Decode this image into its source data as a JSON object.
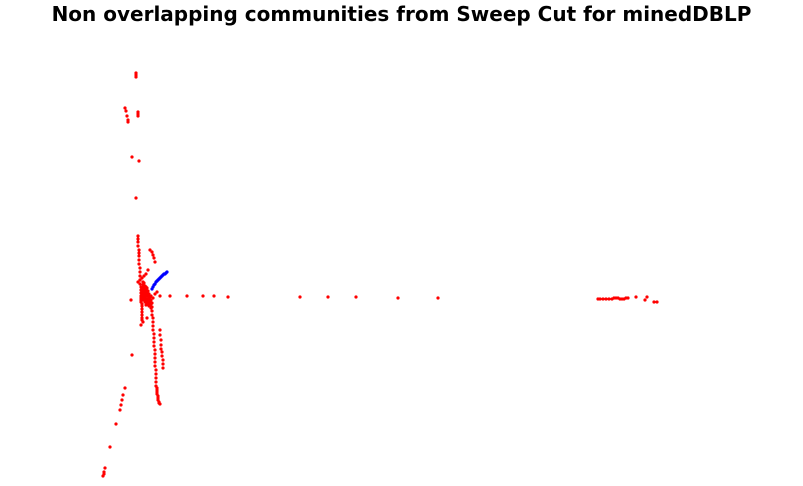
{
  "chart_data": {
    "type": "scatter",
    "title": "Non overlapping communities from Sweep Cut for minedDBLP",
    "xlabel": "",
    "ylabel": "",
    "grid": false,
    "axes_visible": false,
    "legend": "none",
    "series": [
      {
        "color": "#ff0000",
        "x": [
          136,
          136,
          136,
          125,
          126,
          127,
          128,
          128,
          138,
          138,
          138,
          132,
          139,
          136,
          138,
          138,
          138,
          138,
          139,
          139,
          139,
          139,
          139,
          140,
          140,
          140,
          140,
          140,
          141,
          141,
          141,
          141,
          141,
          141,
          141,
          142,
          142,
          142,
          142,
          142,
          142,
          142,
          143,
          143,
          143,
          143,
          143,
          143,
          143,
          144,
          144,
          144,
          144,
          144,
          144,
          145,
          145,
          145,
          145,
          145,
          145,
          145,
          146,
          146,
          146,
          146,
          146,
          146,
          146,
          147,
          147,
          147,
          147,
          147,
          148,
          148,
          148,
          148,
          149,
          149,
          149,
          149,
          150,
          150,
          150,
          151,
          151,
          151,
          152,
          152,
          152,
          152,
          153,
          153,
          153,
          153,
          154,
          154,
          154,
          154,
          155,
          155,
          155,
          155,
          155,
          156,
          156,
          156,
          156,
          156,
          157,
          157,
          157,
          157,
          158,
          158,
          158,
          159,
          159,
          160,
          160,
          160,
          161,
          161,
          161,
          162,
          162,
          163,
          163,
          163,
          145,
          147,
          149,
          151,
          153,
          155,
          157,
          150,
          152,
          153,
          154,
          155,
          148,
          146,
          144,
          142,
          140,
          138,
          160,
          170,
          187,
          203,
          214,
          228,
          300,
          328,
          356,
          398,
          438,
          598,
          600,
          603,
          606,
          609,
          612,
          614,
          616,
          618,
          620,
          622,
          624,
          626,
          628,
          636,
          645,
          647,
          654,
          657,
          132,
          131,
          125,
          123,
          122,
          121,
          120,
          116,
          110,
          105,
          104,
          104,
          103,
          143,
          141,
          147
        ],
        "y": [
          73,
          75,
          77,
          108,
          111,
          116,
          120,
          122,
          112,
          114,
          116,
          157,
          161,
          198,
          236,
          239,
          242,
          246,
          250,
          253,
          256,
          260,
          264,
          268,
          272,
          276,
          280,
          284,
          287,
          290,
          293,
          296,
          298,
          300,
          302,
          304,
          306,
          309,
          312,
          315,
          318,
          320,
          282,
          285,
          288,
          291,
          294,
          297,
          300,
          283,
          286,
          289,
          292,
          295,
          298,
          286,
          288,
          290,
          293,
          296,
          299,
          302,
          287,
          290,
          293,
          296,
          299,
          302,
          305,
          288,
          292,
          296,
          300,
          304,
          291,
          295,
          299,
          303,
          294,
          298,
          302,
          306,
          297,
          301,
          305,
          300,
          304,
          308,
          303,
          307,
          311,
          315,
          318,
          322,
          326,
          330,
          334,
          338,
          342,
          346,
          350,
          354,
          358,
          362,
          366,
          370,
          374,
          378,
          382,
          386,
          388,
          390,
          392,
          394,
          396,
          398,
          400,
          402,
          403,
          404,
          330,
          335,
          340,
          345,
          349,
          352,
          356,
          360,
          364,
          368,
          300,
          302,
          304,
          296,
          298,
          294,
          292,
          250,
          252,
          255,
          258,
          262,
          270,
          274,
          276,
          278,
          280,
          282,
          296,
          296,
          296,
          296,
          296,
          297,
          297,
          297,
          297,
          298,
          298,
          299,
          299,
          299,
          299,
          299,
          299,
          298,
          298,
          298,
          299,
          299,
          299,
          298,
          298,
          297,
          300,
          297,
          302,
          302,
          355,
          300,
          388,
          395,
          400,
          405,
          410,
          424,
          447,
          468,
          472,
          474,
          476,
          322,
          325,
          318
        ],
        "name": ""
      },
      {
        "color": "#0000ff",
        "x": [
          152,
          153,
          154,
          155,
          156,
          157,
          158,
          159,
          160,
          161,
          162,
          163,
          164,
          165,
          166,
          167
        ],
        "y": [
          289,
          287,
          285,
          284,
          282,
          281,
          280,
          279,
          278,
          277,
          276,
          275,
          274,
          274,
          273,
          272
        ],
        "name": ""
      }
    ]
  }
}
